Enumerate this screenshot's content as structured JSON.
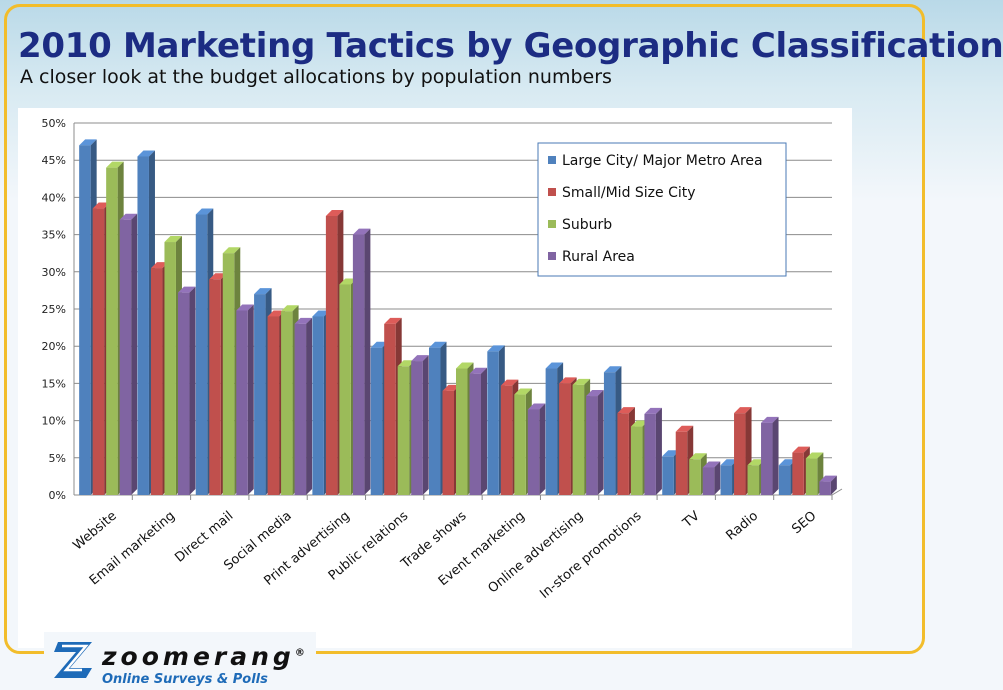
{
  "header": {
    "title": "2010 Marketing Tactics by Geographic Classification",
    "subtitle": "A closer look at the budget allocations by population numbers"
  },
  "logo": {
    "name": "zoomerang",
    "trademark": "®",
    "tagline": "Online Surveys & Polls",
    "icon": "zoomerang-z-icon"
  },
  "colors": {
    "frame": "#f2bd2b",
    "title": "#1c2c83",
    "large_city": "#4f81bd",
    "small_mid_city": "#c0504d",
    "suburb": "#9bbb59",
    "rural": "#8064a2"
  },
  "chart_data": {
    "type": "bar",
    "title": "",
    "xlabel": "",
    "ylabel": "",
    "ylim": [
      0,
      0.5
    ],
    "y_ticks": [
      "0%",
      "5%",
      "10%",
      "15%",
      "20%",
      "25%",
      "30%",
      "35%",
      "40%",
      "45%",
      "50%"
    ],
    "y_format": "percent",
    "grid": true,
    "legend_position": "top-right",
    "categories": [
      "Website",
      "Email marketing",
      "Direct mail",
      "Social media",
      "Print advertising",
      "Public relations",
      "Trade shows",
      "Event marketing",
      "Online advertising",
      "In-store promotions",
      "TV",
      "Radio",
      "SEO"
    ],
    "series": [
      {
        "name": "Large City/ Major Metro Area",
        "color": "#4f81bd",
        "values": [
          0.47,
          0.455,
          0.377,
          0.27,
          0.24,
          0.198,
          0.198,
          0.193,
          0.17,
          0.165,
          0.052,
          0.04,
          0.04
        ]
      },
      {
        "name": "Small/Mid Size City",
        "color": "#c0504d",
        "values": [
          0.385,
          0.305,
          0.29,
          0.24,
          0.375,
          0.23,
          0.14,
          0.147,
          0.15,
          0.11,
          0.085,
          0.11,
          0.057
        ]
      },
      {
        "name": "Suburb",
        "color": "#9bbb59",
        "values": [
          0.44,
          0.34,
          0.325,
          0.247,
          0.283,
          0.173,
          0.17,
          0.135,
          0.148,
          0.092,
          0.048,
          0.04,
          0.049
        ]
      },
      {
        "name": "Rural Area",
        "color": "#8064a2",
        "values": [
          0.37,
          0.272,
          0.248,
          0.23,
          0.35,
          0.18,
          0.163,
          0.115,
          0.133,
          0.109,
          0.037,
          0.097,
          0.018
        ]
      }
    ]
  }
}
